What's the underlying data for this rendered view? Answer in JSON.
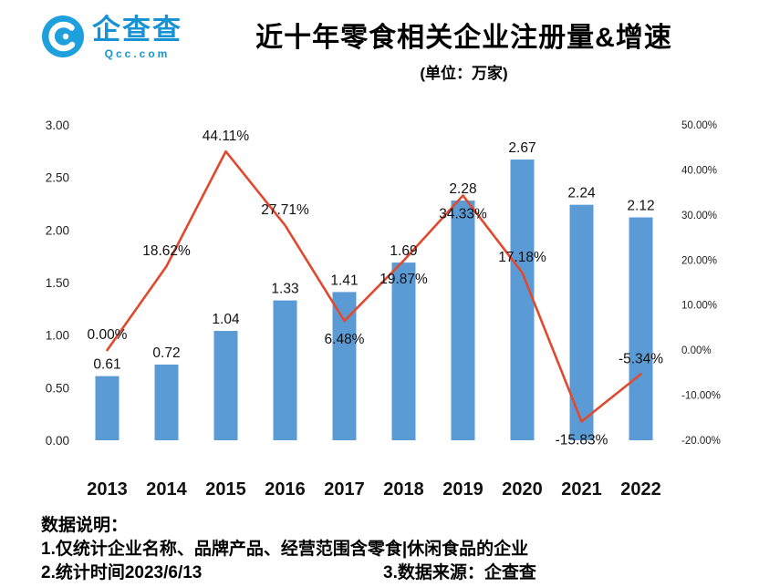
{
  "header": {
    "logo": {
      "brand": "企查查",
      "domain": "Qcc.com",
      "brand_color": "#1793D3"
    },
    "title": "近十年零食相关企业注册量&增速",
    "subtitle": "(单位：万家)"
  },
  "chart_data": {
    "type": "bar",
    "combo": "bar+line",
    "title": "近十年零食相关企业注册量&增速",
    "unit": "万家",
    "categories": [
      "2013",
      "2014",
      "2015",
      "2016",
      "2017",
      "2018",
      "2019",
      "2020",
      "2021",
      "2022"
    ],
    "series": [
      {
        "name": "注册量(万家)",
        "type": "bar",
        "axis": "left",
        "color": "#5B9BD5",
        "values": [
          0.61,
          0.72,
          1.04,
          1.33,
          1.41,
          1.69,
          2.28,
          2.67,
          2.24,
          2.12
        ],
        "labels": [
          "0.61",
          "0.72",
          "1.04",
          "1.33",
          "1.41",
          "1.69",
          "2.28",
          "2.67",
          "2.24",
          "2.12"
        ]
      },
      {
        "name": "增速(%)",
        "type": "line",
        "axis": "right",
        "color": "#E0492E",
        "values": [
          0.0,
          18.62,
          44.11,
          27.71,
          6.48,
          19.87,
          34.33,
          17.18,
          -15.83,
          -5.34
        ],
        "labels": [
          "0.00%",
          "18.62%",
          "44.11%",
          "27.71%",
          "6.48%",
          "19.87%",
          "34.33%",
          "17.18%",
          "-15.83%",
          "-5.34%"
        ],
        "label_positions": [
          "above",
          "above",
          "above",
          "above",
          "below",
          "below",
          "below",
          "above",
          "below",
          "above"
        ]
      }
    ],
    "left_axis": {
      "min": 0,
      "max": 3,
      "step": 0.5,
      "tick_labels": [
        "3.00",
        "2.50",
        "2.00",
        "1.50",
        "1.00",
        "0.50",
        "0.00"
      ]
    },
    "right_axis": {
      "min": -20,
      "max": 50,
      "step": 10,
      "tick_labels": [
        "50.00%",
        "40.00%",
        "30.00%",
        "20.00%",
        "10.00%",
        "0.00%",
        "-10.00%",
        "-20.00%"
      ]
    },
    "grid": false,
    "legend": "none"
  },
  "footer": {
    "heading": "数据说明：",
    "note1": "1.仅统计企业名称、品牌产品、经营范围含零食|休闲食品的企业",
    "note2": "2.统计时间2023/6/13",
    "note3": "3.数据来源：企查查"
  }
}
